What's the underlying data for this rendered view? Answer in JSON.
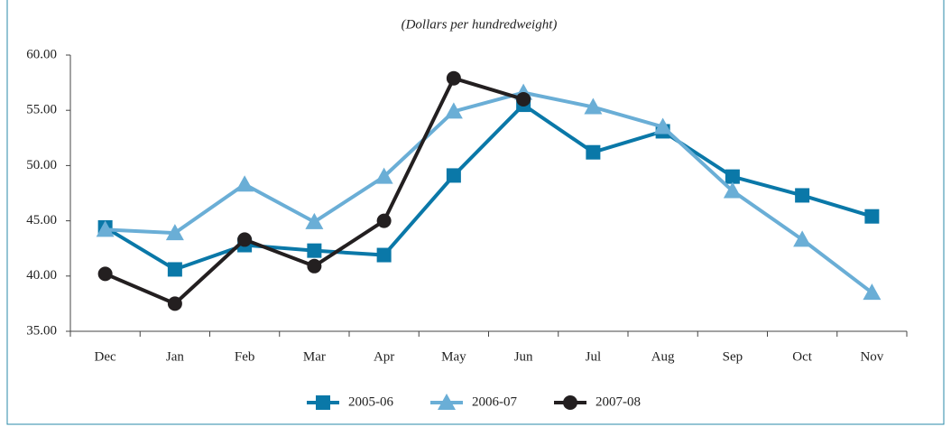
{
  "chart_data": {
    "type": "line",
    "subtitle": "(Dollars per hundredweight)",
    "categories": [
      "Dec",
      "Jan",
      "Feb",
      "Mar",
      "Apr",
      "May",
      "Jun",
      "Jul",
      "Aug",
      "Sep",
      "Oct",
      "Nov"
    ],
    "series": [
      {
        "name": "2005-06",
        "color": "#0a78a8",
        "marker": "square",
        "values": [
          44.4,
          40.6,
          42.8,
          42.3,
          41.9,
          49.1,
          55.5,
          51.2,
          53.1,
          49.0,
          47.3,
          45.4
        ]
      },
      {
        "name": "2006-07",
        "color": "#6aaed6",
        "marker": "triangle",
        "values": [
          44.2,
          43.9,
          48.3,
          44.9,
          49.0,
          54.9,
          56.6,
          55.3,
          53.5,
          47.7,
          43.3,
          38.5
        ]
      },
      {
        "name": "2007-08",
        "color": "#231f20",
        "marker": "circle",
        "values": [
          40.2,
          37.5,
          43.3,
          40.9,
          45.0,
          57.9,
          56.0,
          null,
          null,
          null,
          null,
          null
        ]
      }
    ],
    "ylim": [
      35,
      60
    ],
    "yticks": [
      {
        "value": 35,
        "label": "35.00"
      },
      {
        "value": 40,
        "label": "40.00"
      },
      {
        "value": 45,
        "label": "45.00"
      },
      {
        "value": 50,
        "label": "50.00"
      },
      {
        "value": 55,
        "label": "55.00"
      },
      {
        "value": 60,
        "label": "60.00"
      }
    ],
    "legend": "bottom"
  }
}
